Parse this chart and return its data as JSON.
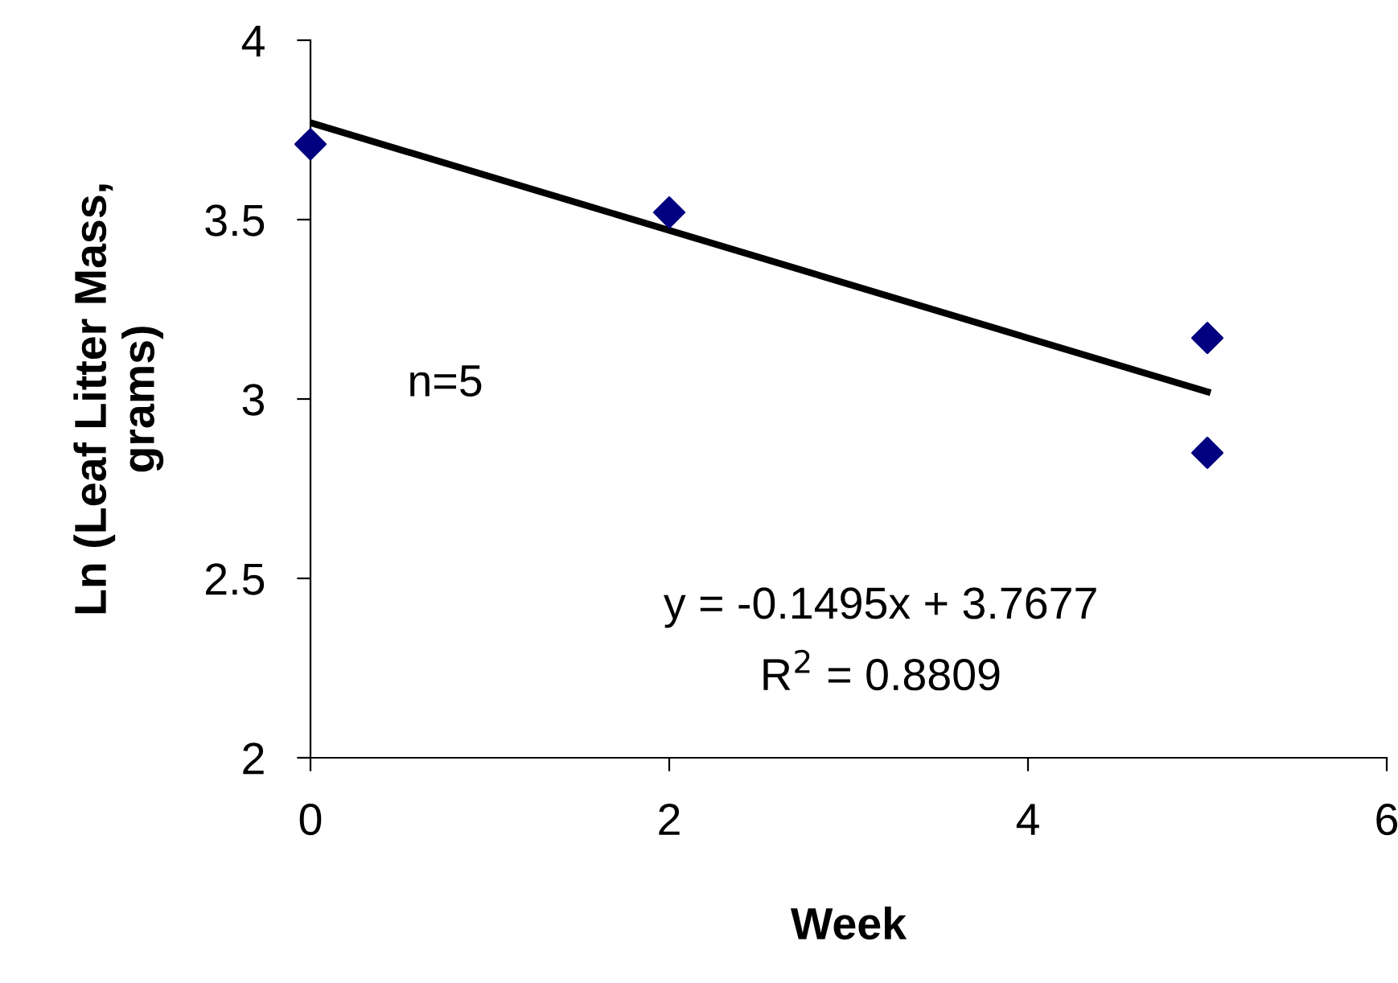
{
  "chart_data": {
    "type": "scatter",
    "xlabel": "Week",
    "ylabel": "Ln (Leaf Litter Mass,\ngrams)",
    "series": [
      {
        "color": "#000080",
        "x": [
          0,
          2,
          5,
          5
        ],
        "values": [
          3.71,
          3.52,
          3.17,
          2.85
        ],
        "marker": "diamond"
      },
      {
        "type": "line",
        "color": "#000000",
        "x": [
          0,
          5
        ],
        "values": [
          3.77,
          3.02
        ],
        "marker": "none",
        "line_style": "solid"
      }
    ],
    "xlim": [
      0,
      6
    ],
    "xticks": [
      0,
      2,
      4,
      6
    ],
    "ylim": [
      2,
      4
    ],
    "yticks": [
      2,
      2.5,
      3,
      3.5,
      4
    ],
    "grid": false,
    "legend": false,
    "annotations": [
      "n=5",
      "y = -0.1495x + 3.7677",
      "R$^{2}$ = 0.8809"
    ]
  }
}
